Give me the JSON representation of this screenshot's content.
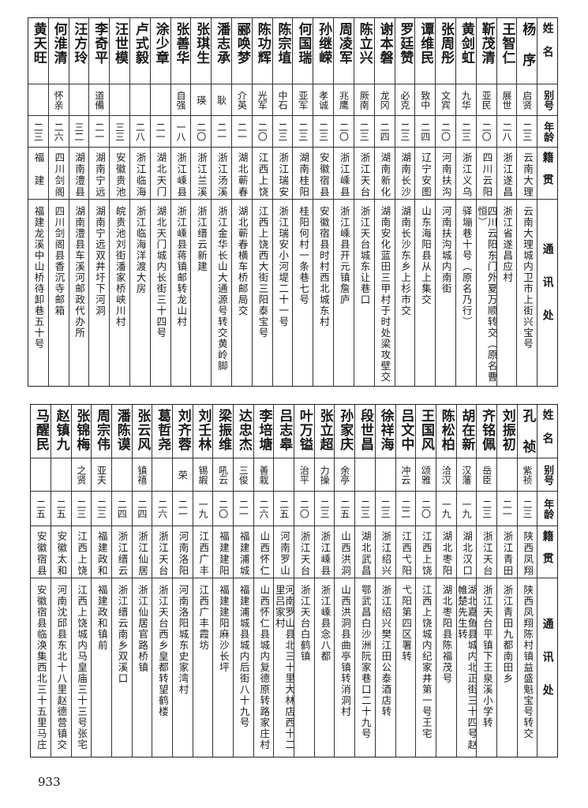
{
  "headers": [
    "姓名",
    "别号",
    "年龄",
    "籍贯",
    "通讯处"
  ],
  "tables": [
    {
      "rows": [
        [
          "杨 序",
          "启贤",
          "二三",
          "云南大理",
          "云南大理城内卫市上街兴宝号"
        ],
        [
          "王智仁",
          "展世",
          "二八",
          "浙江遂昌",
          "浙江省遂昌应村"
        ],
        [
          "靳茂清",
          "亚民",
          "二〇",
          "四川云阳",
          "四川云阳东门外夏万顺转交（原名曹恒）"
        ],
        [
          "黄剑虹",
          "九华",
          "二三",
          "浙江义乌",
          "驿塴巷十号（原名乃行）"
        ],
        [
          "张周彤",
          "文宾",
          "二〇",
          "河南扶沟",
          "河南扶沟城内南街"
        ],
        [
          "谭维民",
          "致中",
          "二四",
          "辽宁安图",
          "山东海阳县从上集交"
        ],
        [
          "罗廷赞",
          "必克",
          "二三",
          "湖南长沙",
          "湖南长沙东乡上杉市交"
        ],
        [
          "谢本磐",
          "龙冈",
          "二四",
          "湖南新化",
          "湖南安化蓝田三甲村于时处梁攻壁交"
        ],
        [
          "陈立兴",
          "厥南",
          "二三",
          "浙江天台",
          "浙江天台城东让巷口"
        ],
        [
          "周凌军",
          "兆鹰",
          "二〇",
          "浙江嵊县",
          "浙江嵊县开元镇詹庐"
        ],
        [
          "孙继嵘",
          "孝诚",
          "二三",
          "安徽宿县",
          "安徽宿县时村西北城东村"
        ],
        [
          "何国瑞",
          "亚军",
          "二三",
          "湖南桂阳",
          "桂阳何村一条巷七号"
        ],
        [
          "陈宗埴",
          "中石",
          "二三",
          "浙江瑞安",
          "浙江瑞安小河堤二十一号"
        ],
        [
          "陈功辉",
          "光军",
          "二〇",
          "江西上饶",
          "江西上饶西大街三阳泰宝号"
        ],
        [
          "郦唤梦",
          "介英",
          "二一",
          "湖北蕲春",
          "湖北蕲春横车桥邮局交"
        ],
        [
          "潘志承",
          "耿",
          "二一",
          "浙江汤溪",
          "浙江金华长山大通源号转交黄岭脚"
        ],
        [
          "张琪生",
          "瑛",
          "二〇",
          "浙江兰溪",
          "浙江缙云新建"
        ],
        [
          "张善华",
          "自强",
          "一八",
          "浙江嵊县",
          "浙江嵊县蒋镇邮转龙山村"
        ],
        [
          "涂少章",
          "",
          "二一",
          "湖北天门",
          "湖北天门城内长街三十四号"
        ],
        [
          "卢式毅",
          "",
          "二八",
          "浙江临海",
          "浙江临海洋渡大房"
        ],
        [
          "汪世模",
          "",
          "三三",
          "安徽贵池",
          "皖贵池刘街潘家桥峡川村"
        ],
        [
          "李奇平",
          "道備",
          "二一",
          "湖南宁远",
          "湖南宁远双井圩下河洞"
        ],
        [
          "汪方玲",
          "",
          "三二",
          "湖南澧县",
          "湖南澧县车溪河邮政代办所"
        ],
        [
          "何淮清",
          "怀亲",
          "二六",
          "四川剑阁",
          "四川剑阁县香沉寺邮箱"
        ],
        [
          "黄天旺",
          "",
          "二三",
          "福　建",
          "福建龙溪中山桥待卸巷五十号"
        ]
      ]
    },
    {
      "rows": [
        [
          "孔 祯",
          "紫祯",
          "二三",
          "陕西凤翔",
          "陕西凤翔陈村镇益盛魁宝号转交"
        ],
        [
          "刘振初",
          "",
          "二一",
          "浙江青田",
          "浙江青田九都南田乡"
        ],
        [
          "齐铭佩",
          "岳臣",
          "二三",
          "浙江天台",
          "浙江天台平镇下王泉溪小学转"
        ],
        [
          "胡在新",
          "汉藩",
          "一九",
          "湖北汉口",
          "湖北嘉鱼县城内北正街三十四号赵帷楚先生转"
        ],
        [
          "陈松柏",
          "洽汉",
          "一九",
          "湖北枣阳",
          "湖北枣阳县陈福茂号"
        ],
        [
          "王国风",
          "颂雅",
          "二〇",
          "江西上饶",
          "江西上饶城内纪家井第一号王宅"
        ],
        [
          "吕文中",
          "冲云",
          "二二",
          "江西弋阳",
          "弋阳第四区署转"
        ],
        [
          "徐祥海",
          "",
          "二三",
          "浙江绍兴",
          "浙江绍兴樊江田公泰酒店转"
        ],
        [
          "段世昌",
          "",
          "二三",
          "湖北武昌",
          "鄂武昌白沙洲阮家巷口二十九号"
        ],
        [
          "孙家庆",
          "余亭",
          "二五",
          "山西洪洞",
          "山西洪洞县曲亭镇转消洞村"
        ],
        [
          "张立超",
          "力操",
          "二三",
          "浙江嵊县",
          "浙江嵊县念八都"
        ],
        [
          "叶万镒",
          "治平",
          "二〇",
          "浙江天台",
          "浙江天台白鹤镇"
        ],
        [
          "吕志皋",
          "",
          "二五",
          "河南罗山",
          "河南罗山县北三十里大林店西十二里吕家村"
        ],
        [
          "李培塘",
          "善栽",
          "二六",
          "山西怀仁",
          "山西怀仁县城内复德原转路家庄村"
        ],
        [
          "达忠杰",
          "三俊",
          "二一",
          "福建浦城",
          "福建浦城县城内后街八十九号"
        ],
        [
          "梁振维",
          "吼云",
          "二〇",
          "福建建阳",
          "福建建阳麻沙长坪"
        ],
        [
          "刘壬林",
          "锡嘏",
          "一九",
          "江西广丰",
          "江西广丰霞坊"
        ],
        [
          "刘齐蓉",
          "荣",
          "二一",
          "河南洛阳",
          "河南洛阳城东史家湾村"
        ],
        [
          "葛哲尧",
          "",
          "二六",
          "浙江天台",
          "浙江天台西乡皇都转望鹤楼"
        ],
        [
          "张云风",
          "镇禧",
          "二四",
          "浙江仙居",
          "浙江仙居官路桥镇"
        ],
        [
          "潘陈谟",
          "",
          "二四",
          "浙江缙云",
          "浙江缙云南乡双溪口"
        ],
        [
          "周宗伟",
          "亚夫",
          "二三",
          "福建政和",
          "福建政和镇前"
        ],
        [
          "张锦梅",
          "之贤",
          "二三",
          "江西上饶",
          "江西上饶城内马皇庙三十三号张宅"
        ],
        [
          "赵镇九",
          "",
          "二五",
          "安徽太和",
          "河南沈邱县东北十八里赵德营镇交"
        ],
        [
          "马醒民",
          "",
          "二五",
          "安徽宿县",
          "安徽宿县临涣集西北三十五里马庄"
        ]
      ]
    }
  ],
  "page_number": "933"
}
